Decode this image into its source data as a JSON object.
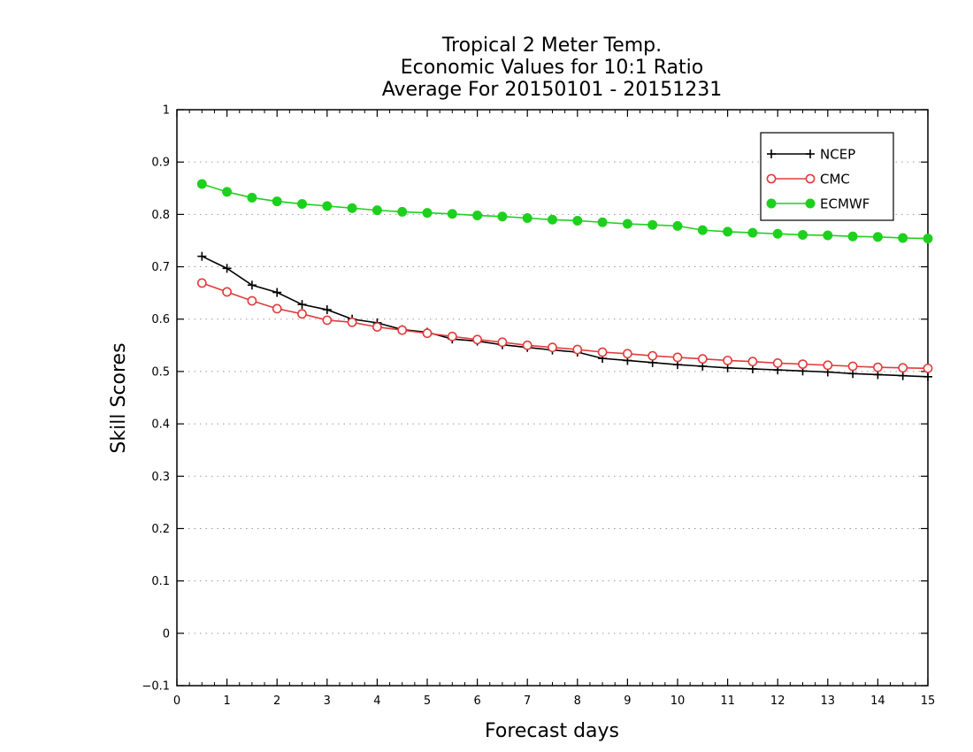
{
  "chart_data": {
    "type": "line",
    "title": [
      "Tropical 2 Meter Temp.",
      "Economic Values for 10:1 Ratio",
      "Average For 20150101 - 20151231"
    ],
    "xlabel": "Forecast days",
    "ylabel": "Skill Scores",
    "xlim": [
      0,
      15
    ],
    "ylim": [
      -0.1,
      1
    ],
    "x_ticks": [
      "0",
      "1",
      "2",
      "3",
      "4",
      "5",
      "6",
      "7",
      "8",
      "9",
      "10",
      "11",
      "12",
      "13",
      "14",
      "15"
    ],
    "y_ticks": [
      "−0.1",
      "0",
      "0.1",
      "0.2",
      "0.3",
      "0.4",
      "0.5",
      "0.6",
      "0.7",
      "0.8",
      "0.9",
      "1"
    ],
    "grid": "horizontal dotted",
    "legend_position": "top-right",
    "x": [
      0.5,
      1,
      1.5,
      2,
      2.5,
      3,
      3.5,
      4,
      4.5,
      5,
      5.5,
      6,
      6.5,
      7,
      7.5,
      8,
      8.5,
      9,
      9.5,
      10,
      10.5,
      11,
      11.5,
      12,
      12.5,
      13,
      13.5,
      14,
      14.5,
      15
    ],
    "series": [
      {
        "name": "NCEP",
        "color": "#000000",
        "marker": "plus",
        "values": [
          0.72,
          0.697,
          0.665,
          0.651,
          0.628,
          0.618,
          0.6,
          0.593,
          0.58,
          0.575,
          0.562,
          0.558,
          0.551,
          0.546,
          0.541,
          0.537,
          0.525,
          0.521,
          0.517,
          0.513,
          0.51,
          0.507,
          0.505,
          0.503,
          0.501,
          0.499,
          0.496,
          0.494,
          0.492,
          0.49
        ]
      },
      {
        "name": "CMC",
        "color": "#e23b3b",
        "marker": "open-circle",
        "values": [
          0.669,
          0.652,
          0.635,
          0.62,
          0.61,
          0.598,
          0.594,
          0.585,
          0.579,
          0.573,
          0.567,
          0.561,
          0.556,
          0.55,
          0.546,
          0.542,
          0.537,
          0.534,
          0.53,
          0.527,
          0.524,
          0.521,
          0.519,
          0.516,
          0.514,
          0.512,
          0.51,
          0.508,
          0.507,
          0.506
        ]
      },
      {
        "name": "ECMWF",
        "color": "#1ed01e",
        "marker": "filled-circle",
        "values": [
          0.858,
          0.843,
          0.832,
          0.825,
          0.82,
          0.816,
          0.812,
          0.808,
          0.805,
          0.803,
          0.801,
          0.798,
          0.796,
          0.793,
          0.79,
          0.788,
          0.785,
          0.782,
          0.78,
          0.778,
          0.77,
          0.767,
          0.765,
          0.763,
          0.761,
          0.76,
          0.758,
          0.757,
          0.755,
          0.754
        ]
      }
    ]
  }
}
